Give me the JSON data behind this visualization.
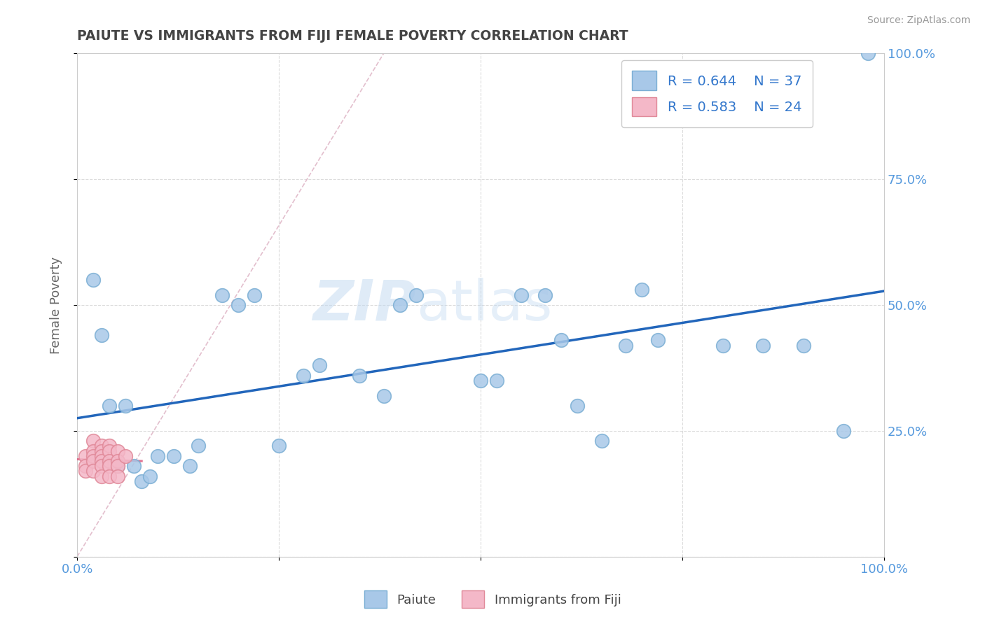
{
  "title": "PAIUTE VS IMMIGRANTS FROM FIJI FEMALE POVERTY CORRELATION CHART",
  "source": "Source: ZipAtlas.com",
  "ylabel": "Female Poverty",
  "watermark": "ZIPatlas",
  "paiute_R": "0.644",
  "paiute_N": "37",
  "fiji_R": "0.583",
  "fiji_N": "24",
  "paiute_color": "#a8c8e8",
  "paiute_edge": "#7aaed4",
  "fiji_color": "#f4b8c8",
  "fiji_edge": "#e08898",
  "regression_blue": "#2266bb",
  "regression_pink": "#dd6688",
  "diagonal_color": "#e0b8c8",
  "grid_color": "#d8d8d8",
  "xlim": [
    0,
    1
  ],
  "ylim": [
    0,
    1
  ],
  "background_color": "#ffffff",
  "title_color": "#444444",
  "axis_label_color": "#666666",
  "tick_label_color": "#5599dd",
  "paiute_x": [
    0.02,
    0.03,
    0.04,
    0.05,
    0.06,
    0.07,
    0.08,
    0.09,
    0.1,
    0.12,
    0.14,
    0.15,
    0.18,
    0.2,
    0.22,
    0.25,
    0.28,
    0.3,
    0.35,
    0.38,
    0.4,
    0.42,
    0.5,
    0.52,
    0.55,
    0.58,
    0.6,
    0.62,
    0.65,
    0.68,
    0.7,
    0.72,
    0.8,
    0.85,
    0.9,
    0.95,
    0.98
  ],
  "paiute_y": [
    0.55,
    0.44,
    0.3,
    0.18,
    0.3,
    0.18,
    0.15,
    0.16,
    0.2,
    0.2,
    0.18,
    0.22,
    0.52,
    0.5,
    0.52,
    0.22,
    0.36,
    0.38,
    0.36,
    0.32,
    0.5,
    0.52,
    0.35,
    0.35,
    0.52,
    0.52,
    0.43,
    0.3,
    0.23,
    0.42,
    0.53,
    0.43,
    0.42,
    0.42,
    0.42,
    0.25,
    1.0
  ],
  "fiji_x": [
    0.01,
    0.01,
    0.01,
    0.02,
    0.02,
    0.02,
    0.02,
    0.02,
    0.03,
    0.03,
    0.03,
    0.03,
    0.03,
    0.03,
    0.04,
    0.04,
    0.04,
    0.04,
    0.04,
    0.05,
    0.05,
    0.05,
    0.05,
    0.06
  ],
  "fiji_y": [
    0.2,
    0.18,
    0.17,
    0.23,
    0.21,
    0.2,
    0.19,
    0.17,
    0.22,
    0.21,
    0.2,
    0.19,
    0.18,
    0.16,
    0.22,
    0.21,
    0.19,
    0.18,
    0.16,
    0.21,
    0.19,
    0.18,
    0.16,
    0.2
  ]
}
